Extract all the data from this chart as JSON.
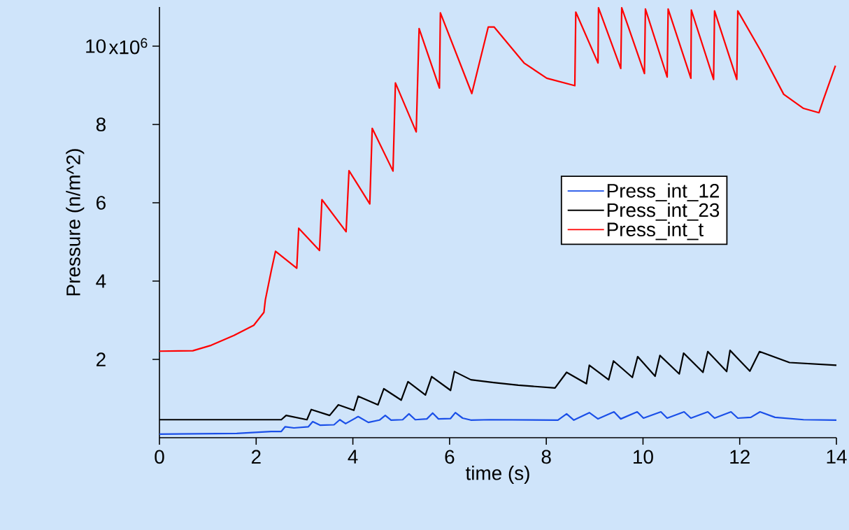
{
  "chart_data": {
    "type": "line",
    "xlabel": "time (s)",
    "ylabel": "Pressure (n/m^2)",
    "xlim": [
      0,
      14
    ],
    "ylim": [
      0,
      11
    ],
    "xticks": [
      0,
      2,
      4,
      6,
      8,
      10,
      12,
      14
    ],
    "yticks": [
      2,
      4,
      6,
      8,
      10
    ],
    "annotations": [
      "x10$^{6}$"
    ],
    "legend": "right",
    "grid": false,
    "series": [
      {
        "name": "Press_int_12",
        "color": "#1a4fe8",
        "x": [
          0,
          1.6,
          2.31,
          2.52,
          2.6,
          2.78,
          3.08,
          3.17,
          3.32,
          3.61,
          3.73,
          3.85,
          4.11,
          4.32,
          4.55,
          4.67,
          4.79,
          5.03,
          5.16,
          5.29,
          5.53,
          5.65,
          5.77,
          6.02,
          6.12,
          6.27,
          6.44,
          6.83,
          8.24,
          8.42,
          8.57,
          8.89,
          9.07,
          9.4,
          9.54,
          9.88,
          10.01,
          10.37,
          10.5,
          10.85,
          10.99,
          11.34,
          11.48,
          11.82,
          11.96,
          12.23,
          12.42,
          12.73,
          13.32,
          14.0
        ],
        "values": [
          0.09,
          0.11,
          0.16,
          0.16,
          0.28,
          0.25,
          0.28,
          0.41,
          0.32,
          0.33,
          0.46,
          0.36,
          0.54,
          0.39,
          0.45,
          0.57,
          0.45,
          0.46,
          0.61,
          0.46,
          0.48,
          0.63,
          0.48,
          0.49,
          0.64,
          0.5,
          0.45,
          0.46,
          0.45,
          0.61,
          0.45,
          0.64,
          0.48,
          0.66,
          0.48,
          0.66,
          0.5,
          0.66,
          0.5,
          0.66,
          0.5,
          0.66,
          0.5,
          0.66,
          0.5,
          0.52,
          0.66,
          0.52,
          0.46,
          0.45
        ]
      },
      {
        "name": "Press_int_23",
        "color": "#000000",
        "x": [
          0,
          2.52,
          2.62,
          3.05,
          3.14,
          3.52,
          3.7,
          4.02,
          4.11,
          4.52,
          4.64,
          5.0,
          5.14,
          5.5,
          5.63,
          6.02,
          6.1,
          6.44,
          6.91,
          7.42,
          8.18,
          8.42,
          8.83,
          8.89,
          9.29,
          9.39,
          9.78,
          9.89,
          10.25,
          10.35,
          10.75,
          10.84,
          11.24,
          11.34,
          11.73,
          11.8,
          12.21,
          12.41,
          13.03,
          14.0
        ],
        "values": [
          0.46,
          0.46,
          0.57,
          0.46,
          0.72,
          0.57,
          0.84,
          0.7,
          1.06,
          0.84,
          1.25,
          0.96,
          1.43,
          1.09,
          1.56,
          1.21,
          1.69,
          1.48,
          1.41,
          1.34,
          1.27,
          1.67,
          1.38,
          1.85,
          1.48,
          1.96,
          1.54,
          2.07,
          1.57,
          2.1,
          1.63,
          2.16,
          1.67,
          2.2,
          1.69,
          2.23,
          1.7,
          2.2,
          1.92,
          1.85
        ]
      },
      {
        "name": "Press_int_t",
        "color": "#ff0000",
        "x": [
          0,
          0.69,
          1.07,
          1.54,
          1.95,
          2.16,
          2.19,
          2.31,
          2.4,
          2.84,
          2.88,
          3.31,
          3.36,
          3.86,
          3.92,
          4.35,
          4.4,
          4.83,
          4.88,
          5.31,
          5.37,
          5.79,
          5.81,
          6.46,
          6.8,
          6.92,
          7.54,
          8.01,
          8.59,
          8.61,
          9.07,
          9.08,
          9.54,
          9.56,
          10.03,
          10.05,
          10.5,
          10.52,
          10.99,
          11.0,
          11.46,
          11.48,
          11.94,
          11.96,
          12.44,
          12.91,
          13.32,
          13.64,
          13.73,
          13.98
        ],
        "values": [
          2.21,
          2.22,
          2.36,
          2.61,
          2.87,
          3.2,
          3.52,
          4.25,
          4.76,
          4.33,
          5.35,
          4.78,
          6.08,
          5.26,
          6.82,
          5.97,
          7.9,
          6.81,
          9.06,
          7.81,
          10.45,
          8.93,
          10.85,
          8.79,
          10.49,
          10.49,
          9.57,
          9.18,
          8.99,
          10.87,
          9.57,
          10.98,
          9.43,
          10.98,
          9.3,
          10.95,
          9.21,
          10.95,
          9.18,
          10.92,
          9.15,
          10.9,
          9.15,
          10.9,
          9.87,
          8.77,
          8.41,
          8.3,
          8.63,
          9.5
        ]
      }
    ]
  }
}
